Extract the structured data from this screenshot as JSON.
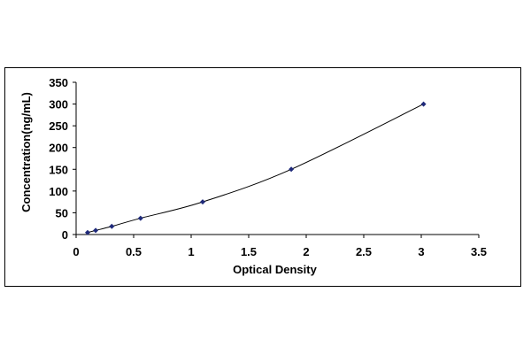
{
  "chart_data": {
    "type": "scatter",
    "xlabel": "Optical Density",
    "ylabel": "Concentration(ng/mL)",
    "xlim": [
      0,
      3.5
    ],
    "ylim": [
      0,
      350
    ],
    "xticks": [
      0,
      0.5,
      1,
      1.5,
      2,
      2.5,
      3,
      3.5
    ],
    "xtick_labels": [
      "0",
      "0.5",
      "1",
      "1.5",
      "2",
      "2.5",
      "3",
      "3.5"
    ],
    "yticks": [
      0,
      50,
      100,
      150,
      200,
      250,
      300,
      350
    ],
    "ytick_labels": [
      "0",
      "50",
      "100",
      "150",
      "200",
      "250",
      "300",
      "350"
    ],
    "grid": false,
    "legend": "none",
    "series": [
      {
        "x": [
          0.1,
          0.17,
          0.31,
          0.56,
          1.1,
          1.87,
          3.02
        ],
        "y": [
          4.69,
          9.38,
          18.75,
          37.5,
          75,
          150,
          300
        ],
        "marker": "diamond",
        "trendline": "smooth",
        "color": "#1f2a7a"
      }
    ],
    "line_color": "#000000"
  }
}
